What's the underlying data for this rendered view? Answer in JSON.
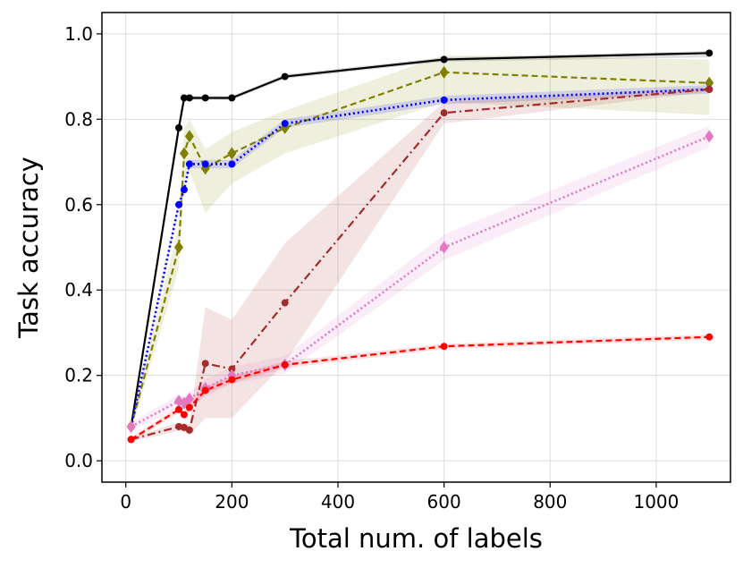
{
  "chart_data": {
    "type": "line",
    "title": "",
    "xlabel": "Total num. of labels",
    "ylabel": "Task accuracy",
    "xlim": [
      -45,
      1140
    ],
    "ylim": [
      -0.05,
      1.05
    ],
    "xticks": [
      0,
      200,
      400,
      600,
      800,
      1000
    ],
    "xtick_labels": [
      "0",
      "200",
      "400",
      "600",
      "800",
      "1000"
    ],
    "yticks": [
      0.0,
      0.2,
      0.4,
      0.6,
      0.8,
      1.0
    ],
    "ytick_labels": [
      "0.0",
      "0.2",
      "0.4",
      "0.6",
      "0.8",
      "1.0"
    ],
    "grid": true,
    "series": [
      {
        "name": "black",
        "color": "#000000",
        "dash": "solid",
        "marker": "circle",
        "x": [
          10,
          100,
          110,
          120,
          150,
          200,
          300,
          600,
          1100
        ],
        "y": [
          0.08,
          0.78,
          0.85,
          0.85,
          0.85,
          0.85,
          0.9,
          0.94,
          0.955
        ],
        "band_lower": [
          0.075,
          0.775,
          0.845,
          0.845,
          0.845,
          0.845,
          0.895,
          0.935,
          0.945
        ],
        "band_upper": [
          0.085,
          0.785,
          0.855,
          0.855,
          0.855,
          0.855,
          0.905,
          0.945,
          0.96
        ]
      },
      {
        "name": "olive",
        "color": "#808000",
        "dash": "dashed",
        "marker": "diamond",
        "x": [
          10,
          100,
          110,
          120,
          150,
          200,
          300,
          600,
          1100
        ],
        "y": [
          0.08,
          0.5,
          0.72,
          0.76,
          0.685,
          0.72,
          0.78,
          0.91,
          0.885
        ],
        "band_lower": [
          0.07,
          0.45,
          0.66,
          0.68,
          0.58,
          0.65,
          0.72,
          0.84,
          0.81
        ],
        "band_upper": [
          0.09,
          0.55,
          0.78,
          0.8,
          0.73,
          0.77,
          0.82,
          0.95,
          0.94
        ]
      },
      {
        "name": "blue",
        "color": "#0000ff",
        "dash": "dotted",
        "marker": "circle",
        "x": [
          10,
          100,
          110,
          120,
          150,
          200,
          300,
          600,
          1100
        ],
        "y": [
          0.08,
          0.6,
          0.635,
          0.695,
          0.695,
          0.695,
          0.79,
          0.845,
          0.87
        ],
        "band_lower": [
          0.075,
          0.59,
          0.625,
          0.685,
          0.685,
          0.685,
          0.78,
          0.835,
          0.86
        ],
        "band_upper": [
          0.085,
          0.61,
          0.645,
          0.705,
          0.705,
          0.705,
          0.8,
          0.855,
          0.88
        ]
      },
      {
        "name": "brown",
        "color": "#a52a2a",
        "dash": "dashdot",
        "marker": "circle",
        "x": [
          10,
          100,
          110,
          120,
          150,
          200,
          300,
          600,
          1100
        ],
        "y": [
          0.05,
          0.08,
          0.078,
          0.072,
          0.228,
          0.215,
          0.37,
          0.815,
          0.87
        ],
        "band_lower": [
          0.045,
          0.07,
          0.068,
          0.06,
          0.1,
          0.1,
          0.23,
          0.79,
          0.865
        ],
        "band_upper": [
          0.055,
          0.09,
          0.088,
          0.085,
          0.36,
          0.33,
          0.51,
          0.84,
          0.875
        ]
      },
      {
        "name": "pink",
        "color": "#e377c2",
        "dash": "dotted",
        "marker": "diamond",
        "x": [
          10,
          100,
          110,
          120,
          150,
          200,
          300,
          600,
          1100
        ],
        "y": [
          0.08,
          0.14,
          0.135,
          0.145,
          0.17,
          0.2,
          0.225,
          0.5,
          0.76
        ],
        "band_lower": [
          0.07,
          0.125,
          0.12,
          0.13,
          0.15,
          0.18,
          0.205,
          0.47,
          0.735
        ],
        "band_upper": [
          0.09,
          0.155,
          0.15,
          0.16,
          0.19,
          0.22,
          0.245,
          0.53,
          0.785
        ]
      },
      {
        "name": "red",
        "color": "#ff0000",
        "dash": "dashed",
        "marker": "circle",
        "x": [
          10,
          100,
          110,
          120,
          150,
          200,
          300,
          600,
          1100
        ],
        "y": [
          0.05,
          0.12,
          0.108,
          0.125,
          0.165,
          0.19,
          0.225,
          0.268,
          0.29
        ],
        "band_lower": [
          0.045,
          0.112,
          0.1,
          0.117,
          0.157,
          0.182,
          0.217,
          0.262,
          0.284
        ],
        "band_upper": [
          0.055,
          0.128,
          0.116,
          0.133,
          0.173,
          0.198,
          0.233,
          0.274,
          0.296
        ]
      }
    ]
  }
}
